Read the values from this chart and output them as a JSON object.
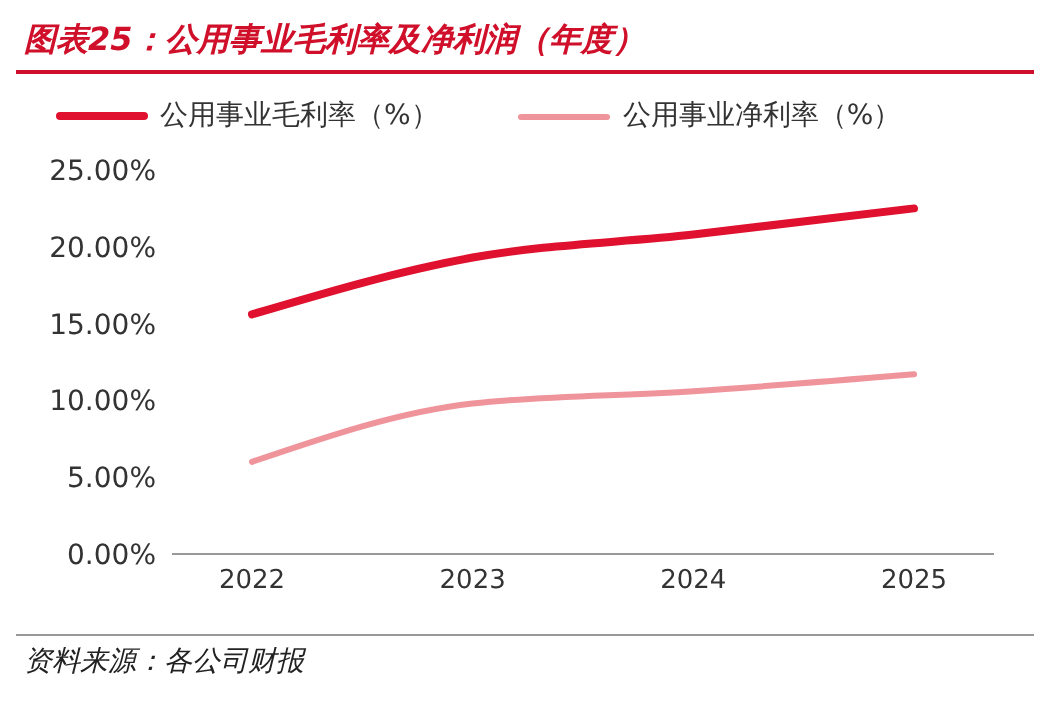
{
  "chart_data": {
    "type": "line",
    "title": "图表25：公用事业毛利率及净利润（年度）",
    "categories": [
      "2022",
      "2023",
      "2024",
      "2025"
    ],
    "series": [
      {
        "name": "公用事业毛利率（%）",
        "color": "#e0102f",
        "values": [
          15.6,
          19.3,
          20.8,
          22.5
        ]
      },
      {
        "name": "公用事业净利率（%）",
        "color": "#f0949c",
        "values": [
          6.0,
          9.8,
          10.6,
          11.7
        ]
      }
    ],
    "ylim": [
      0,
      25
    ],
    "yticks": [
      {
        "value": 0,
        "label": "0.00%"
      },
      {
        "value": 5,
        "label": "5.00%"
      },
      {
        "value": 10,
        "label": "10.00%"
      },
      {
        "value": 15,
        "label": "15.00%"
      },
      {
        "value": 20,
        "label": "20.00%"
      },
      {
        "value": 25,
        "label": "25.00%"
      }
    ],
    "grid": false,
    "legend": "top",
    "marker": "none",
    "line_style": "solid",
    "annotations": [
      "资料来源：各公司财报"
    ]
  }
}
